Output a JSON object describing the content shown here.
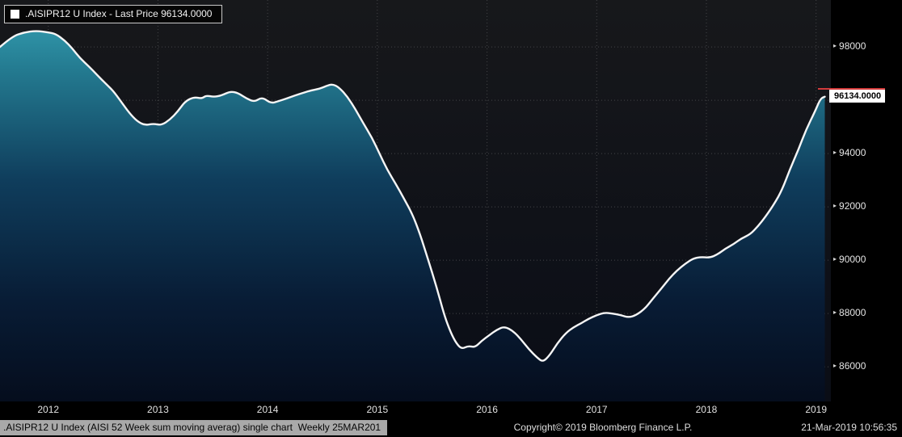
{
  "legend": {
    "series_label": ".AISIPR12 U Index - Last Price 96134.0000",
    "swatch_color": "#ffffff"
  },
  "axis": {
    "last_price_label": "96134.0000"
  },
  "footer": {
    "description": ".AISIPR12 U Index (AISI 52 Week sum moving averag) single chart  Weekly 25MAR201",
    "copyright": "Copyright© 2019 Bloomberg Finance L.P.",
    "datetime": "21-Mar-2019 10:56:35",
    "highlight_bg": "#a9a9a9"
  },
  "chart_data": {
    "type": "area",
    "title": ".AISIPR12 U Index - Last Price 96134.0000",
    "series_name": ".AISIPR12 U Index (AISI 52 Week sum moving averag)",
    "frequency": "Weekly",
    "legend_position": "top-left",
    "grid": true,
    "xlabel": "",
    "ylabel": "",
    "x_ticks": [
      2012,
      2013,
      2014,
      2015,
      2016,
      2017,
      2018,
      2019
    ],
    "y_ticks": [
      86000,
      88000,
      90000,
      92000,
      94000,
      96000,
      98000
    ],
    "xlim": [
      2011.56,
      2019.135
    ],
    "ylim": [
      84700,
      99760
    ],
    "last_price": 96134.0,
    "colors": {
      "line": "#f5f5f5",
      "grid": "#434447",
      "axis_text": "#e3e3e3",
      "last_price_marker": "#d23b3b",
      "plot_bg_top": "#17181b",
      "plot_bg_bottom": "#0a0d16",
      "fill_stops": [
        [
          0,
          "#37a6b8"
        ],
        [
          0.18,
          "#23798f"
        ],
        [
          0.45,
          "#0f3d5c"
        ],
        [
          0.75,
          "#081c35"
        ],
        [
          1,
          "#050d1d"
        ]
      ]
    },
    "series": [
      {
        "name": ".AISIPR12 U Index",
        "points": [
          [
            2011.56,
            98000
          ],
          [
            2011.67,
            98394
          ],
          [
            2011.78,
            98545
          ],
          [
            2011.89,
            98606
          ],
          [
            2012.0,
            98545
          ],
          [
            2012.07,
            98485
          ],
          [
            2012.15,
            98242
          ],
          [
            2012.22,
            97939
          ],
          [
            2012.29,
            97576
          ],
          [
            2012.37,
            97273
          ],
          [
            2012.44,
            96970
          ],
          [
            2012.52,
            96636
          ],
          [
            2012.59,
            96364
          ],
          [
            2012.66,
            95970
          ],
          [
            2012.74,
            95515
          ],
          [
            2012.81,
            95212
          ],
          [
            2012.88,
            95061
          ],
          [
            2012.96,
            95121
          ],
          [
            2013.03,
            95061
          ],
          [
            2013.11,
            95273
          ],
          [
            2013.18,
            95576
          ],
          [
            2013.25,
            95970
          ],
          [
            2013.33,
            96121
          ],
          [
            2013.4,
            96061
          ],
          [
            2013.44,
            96182
          ],
          [
            2013.51,
            96121
          ],
          [
            2013.58,
            96182
          ],
          [
            2013.66,
            96333
          ],
          [
            2013.73,
            96273
          ],
          [
            2013.81,
            96061
          ],
          [
            2013.88,
            95939
          ],
          [
            2013.95,
            96121
          ],
          [
            2014.03,
            95879
          ],
          [
            2014.1,
            95970
          ],
          [
            2014.17,
            96061
          ],
          [
            2014.25,
            96182
          ],
          [
            2014.32,
            96273
          ],
          [
            2014.39,
            96364
          ],
          [
            2014.47,
            96424
          ],
          [
            2014.54,
            96545
          ],
          [
            2014.59,
            96606
          ],
          [
            2014.65,
            96485
          ],
          [
            2014.73,
            96121
          ],
          [
            2014.8,
            95667
          ],
          [
            2014.87,
            95152
          ],
          [
            2014.95,
            94606
          ],
          [
            2015.02,
            94000
          ],
          [
            2015.09,
            93394
          ],
          [
            2015.17,
            92848
          ],
          [
            2015.24,
            92333
          ],
          [
            2015.32,
            91727
          ],
          [
            2015.39,
            90970
          ],
          [
            2015.46,
            90061
          ],
          [
            2015.54,
            89000
          ],
          [
            2015.61,
            87939
          ],
          [
            2015.67,
            87273
          ],
          [
            2015.72,
            86879
          ],
          [
            2015.77,
            86667
          ],
          [
            2015.83,
            86788
          ],
          [
            2015.89,
            86727
          ],
          [
            2015.95,
            86970
          ],
          [
            2016.02,
            87182
          ],
          [
            2016.09,
            87394
          ],
          [
            2016.16,
            87515
          ],
          [
            2016.24,
            87333
          ],
          [
            2016.31,
            87030
          ],
          [
            2016.38,
            86667
          ],
          [
            2016.46,
            86333
          ],
          [
            2016.51,
            86182
          ],
          [
            2016.57,
            86424
          ],
          [
            2016.64,
            86879
          ],
          [
            2016.72,
            87273
          ],
          [
            2016.79,
            87485
          ],
          [
            2016.86,
            87636
          ],
          [
            2016.92,
            87788
          ],
          [
            2017.0,
            87939
          ],
          [
            2017.07,
            88030
          ],
          [
            2017.14,
            88000
          ],
          [
            2017.22,
            87939
          ],
          [
            2017.29,
            87848
          ],
          [
            2017.36,
            87939
          ],
          [
            2017.44,
            88182
          ],
          [
            2017.51,
            88545
          ],
          [
            2017.59,
            88939
          ],
          [
            2017.66,
            89303
          ],
          [
            2017.73,
            89606
          ],
          [
            2017.81,
            89879
          ],
          [
            2017.88,
            90061
          ],
          [
            2017.95,
            90121
          ],
          [
            2018.03,
            90091
          ],
          [
            2018.1,
            90212
          ],
          [
            2018.17,
            90424
          ],
          [
            2018.25,
            90606
          ],
          [
            2018.32,
            90818
          ],
          [
            2018.4,
            90970
          ],
          [
            2018.47,
            91273
          ],
          [
            2018.54,
            91636
          ],
          [
            2018.62,
            92121
          ],
          [
            2018.69,
            92636
          ],
          [
            2018.76,
            93394
          ],
          [
            2018.84,
            94152
          ],
          [
            2018.91,
            94909
          ],
          [
            2018.99,
            95576
          ],
          [
            2019.04,
            96061
          ],
          [
            2019.08,
            96134
          ]
        ]
      }
    ]
  }
}
